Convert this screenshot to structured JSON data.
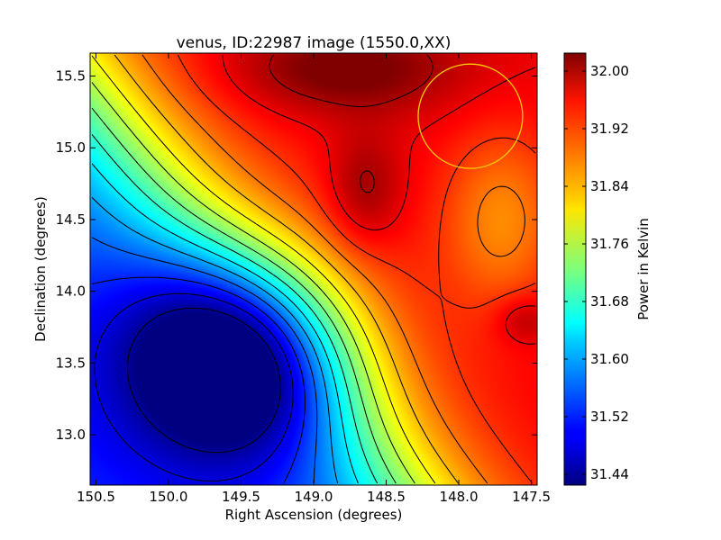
{
  "chart_data": {
    "type": "heatmap",
    "title": "venus, ID:22987 image (1550.0,XX)",
    "xlabel": "Right Ascension (degrees)",
    "ylabel": "Declination (degrees)",
    "colorbar_label": "Power in Kelvin",
    "xlim": [
      150.54,
      147.46
    ],
    "ylim": [
      12.65,
      15.66
    ],
    "x_ticks": [
      {
        "value": 150.5,
        "label": "150.5"
      },
      {
        "value": 150.0,
        "label": "150.0"
      },
      {
        "value": 149.5,
        "label": "149.5"
      },
      {
        "value": 149.0,
        "label": "149.0"
      },
      {
        "value": 148.5,
        "label": "148.5"
      },
      {
        "value": 148.0,
        "label": "148.0"
      },
      {
        "value": 147.5,
        "label": "147.5"
      }
    ],
    "y_ticks": [
      {
        "value": 13.0,
        "label": "13.0"
      },
      {
        "value": 13.5,
        "label": "13.5"
      },
      {
        "value": 14.0,
        "label": "14.0"
      },
      {
        "value": 14.5,
        "label": "14.5"
      },
      {
        "value": 15.0,
        "label": "15.0"
      },
      {
        "value": 15.5,
        "label": "15.5"
      }
    ],
    "colorbar": {
      "min": 31.425,
      "max": 32.025,
      "ticks": [
        {
          "value": 31.44,
          "label": "31.44"
        },
        {
          "value": 31.52,
          "label": "31.52"
        },
        {
          "value": 31.6,
          "label": "31.60"
        },
        {
          "value": 31.68,
          "label": "31.68"
        },
        {
          "value": 31.76,
          "label": "31.76"
        },
        {
          "value": 31.84,
          "label": "31.84"
        },
        {
          "value": 31.92,
          "label": "31.92"
        },
        {
          "value": 32.0,
          "label": "32.00"
        }
      ],
      "colormap": "jet"
    },
    "features": [
      {
        "kind": "minimum",
        "ra": 149.5,
        "dec": 13.55,
        "value": 31.43
      },
      {
        "kind": "maximum",
        "ra": 148.65,
        "dec": 14.7,
        "value": 32.0
      },
      {
        "kind": "maximum",
        "ra": 148.8,
        "dec": 15.55,
        "value": 32.02
      },
      {
        "kind": "maximum",
        "ra": 147.55,
        "dec": 13.8,
        "value": 31.99
      },
      {
        "kind": "local-low",
        "ra": 147.7,
        "dec": 14.5,
        "value": 31.87
      }
    ],
    "contour_interval": 0.04,
    "beam_circle": {
      "ra": 147.92,
      "dec": 15.22,
      "radius_deg": 0.36,
      "color": "#ffcc00"
    },
    "grid": false
  }
}
